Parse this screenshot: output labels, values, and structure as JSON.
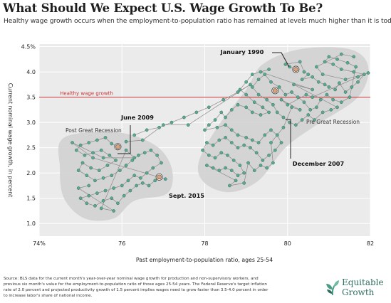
{
  "header": {
    "title": "What Should We Expect U.S. Wage Growth To Be?",
    "subtitle": "Healthy wage growth occurs when the employment-to-population ratio has remained at levels much higher than it is today."
  },
  "chart_data": {
    "type": "scatter",
    "xlabel": "Past employment-to-population ratio, ages 25-54",
    "ylabel": "Current nominal wage growth, in percent",
    "xlim": [
      74,
      82
    ],
    "ylim": [
      0.75,
      4.55
    ],
    "x_ticks": [
      "74%",
      "76",
      "78",
      "80",
      "82"
    ],
    "y_ticks": [
      "1.0",
      "1.5",
      "2.0",
      "2.5",
      "3.0",
      "3.5",
      "4.0",
      "4.5%"
    ],
    "grid": true,
    "reference_line": {
      "y": 3.5,
      "label": "Healthy wage growth"
    },
    "regions": [
      "Post Great Recession",
      "Pre Great Recession"
    ],
    "annotations": [
      {
        "label": "January 1990",
        "x": 80.2,
        "y": 4.05
      },
      {
        "label": "June 2009",
        "x": 75.9,
        "y": 2.52
      },
      {
        "label": "December 2007",
        "x": 79.7,
        "y": 3.63
      },
      {
        "label": "Sept. 2015",
        "x": 76.9,
        "y": 1.92
      }
    ],
    "series": [
      {
        "points": [
          [
            80.2,
            4.05
          ],
          [
            80.05,
            4.1
          ],
          [
            79.95,
            4.15
          ],
          [
            80.3,
            4.2
          ],
          [
            80.4,
            4.0
          ],
          [
            80.5,
            3.95
          ],
          [
            80.35,
            3.85
          ],
          [
            80.6,
            3.9
          ],
          [
            80.75,
            3.8
          ],
          [
            80.9,
            3.75
          ],
          [
            81.0,
            3.7
          ],
          [
            81.15,
            3.65
          ],
          [
            81.25,
            3.78
          ],
          [
            81.4,
            3.6
          ],
          [
            81.55,
            3.7
          ],
          [
            81.7,
            3.8
          ],
          [
            81.85,
            3.95
          ],
          [
            81.6,
            4.0
          ],
          [
            81.3,
            4.05
          ],
          [
            81.1,
            4.15
          ],
          [
            80.9,
            4.2
          ],
          [
            81.0,
            4.3
          ],
          [
            81.2,
            4.25
          ],
          [
            81.45,
            4.18
          ],
          [
            81.65,
            4.1
          ],
          [
            81.5,
            3.5
          ],
          [
            81.3,
            3.4
          ],
          [
            81.1,
            3.45
          ],
          [
            80.95,
            3.55
          ],
          [
            80.8,
            3.45
          ],
          [
            80.7,
            3.3
          ],
          [
            80.55,
            3.25
          ],
          [
            80.4,
            3.4
          ],
          [
            80.25,
            3.5
          ],
          [
            80.1,
            3.6
          ],
          [
            79.95,
            3.55
          ],
          [
            79.8,
            3.7
          ],
          [
            79.6,
            3.8
          ],
          [
            79.45,
            3.95
          ],
          [
            79.3,
            3.85
          ],
          [
            79.15,
            3.7
          ],
          [
            79.3,
            3.55
          ],
          [
            79.5,
            3.45
          ],
          [
            79.65,
            3.35
          ],
          [
            79.75,
            3.2
          ],
          [
            79.9,
            3.1
          ],
          [
            80.05,
            3.0
          ],
          [
            80.2,
            2.95
          ],
          [
            80.35,
            3.05
          ],
          [
            80.5,
            3.15
          ],
          [
            80.65,
            3.05
          ],
          [
            80.85,
            3.2
          ],
          [
            81.05,
            3.25
          ],
          [
            81.2,
            3.3
          ],
          [
            80.15,
            3.75
          ],
          [
            80.6,
            3.65
          ],
          [
            79.35,
            4.0
          ],
          [
            79.55,
            4.05
          ],
          [
            79.15,
            3.95
          ],
          [
            79.0,
            3.8
          ],
          [
            78.85,
            3.65
          ],
          [
            79.0,
            3.55
          ],
          [
            79.2,
            3.4
          ],
          [
            79.4,
            3.3
          ],
          [
            79.55,
            3.2
          ],
          [
            79.35,
            3.15
          ],
          [
            79.15,
            3.2
          ],
          [
            79.0,
            3.3
          ],
          [
            78.8,
            3.35
          ],
          [
            78.65,
            3.25
          ],
          [
            78.5,
            3.1
          ],
          [
            78.4,
            3.2
          ],
          [
            78.25,
            3.05
          ],
          [
            78.1,
            2.95
          ],
          [
            78.0,
            2.85
          ],
          [
            78.3,
            2.9
          ],
          [
            78.5,
            2.95
          ],
          [
            78.65,
            2.85
          ],
          [
            78.8,
            2.75
          ],
          [
            79.0,
            2.7
          ],
          [
            79.15,
            2.65
          ],
          [
            79.3,
            2.6
          ],
          [
            79.45,
            2.75
          ],
          [
            79.6,
            2.85
          ],
          [
            79.75,
            2.75
          ],
          [
            79.85,
            2.6
          ],
          [
            79.7,
            2.45
          ],
          [
            79.55,
            2.35
          ],
          [
            79.4,
            2.25
          ],
          [
            79.25,
            2.4
          ],
          [
            79.1,
            2.5
          ],
          [
            78.95,
            2.55
          ],
          [
            78.8,
            2.5
          ],
          [
            78.65,
            2.6
          ],
          [
            78.5,
            2.7
          ],
          [
            78.35,
            2.65
          ],
          [
            78.2,
            2.55
          ],
          [
            78.05,
            2.6
          ],
          [
            77.95,
            2.45
          ],
          [
            78.1,
            2.35
          ],
          [
            78.25,
            2.3
          ],
          [
            78.4,
            2.4
          ],
          [
            78.55,
            2.35
          ],
          [
            78.7,
            2.25
          ],
          [
            78.85,
            2.15
          ],
          [
            78.95,
            2.0
          ],
          [
            78.8,
            1.95
          ],
          [
            78.65,
            2.05
          ],
          [
            78.5,
            2.1
          ],
          [
            78.35,
            2.05
          ],
          [
            78.2,
            2.1
          ],
          [
            78.05,
            2.15
          ],
          [
            78.75,
            1.85
          ],
          [
            78.6,
            1.75
          ],
          [
            78.95,
            1.8
          ],
          [
            79.05,
            2.2
          ],
          [
            79.2,
            2.05
          ],
          [
            79.35,
            2.15
          ],
          [
            79.5,
            2.1
          ],
          [
            79.65,
            2.2
          ],
          [
            79.6,
            2.6
          ],
          [
            79.9,
            2.9
          ],
          [
            80.1,
            3.3
          ],
          [
            80.3,
            3.25
          ],
          [
            79.85,
            3.45
          ],
          [
            80.0,
            3.35
          ],
          [
            80.45,
            3.55
          ],
          [
            80.6,
            3.5
          ],
          [
            81.7,
            3.9
          ],
          [
            81.95,
            3.98
          ],
          [
            81.4,
            3.85
          ],
          [
            80.85,
            3.95
          ],
          [
            80.7,
            4.1
          ],
          [
            81.3,
            4.35
          ],
          [
            81.6,
            4.3
          ]
        ]
      },
      {
        "points": [
          [
            75.9,
            2.52
          ],
          [
            75.75,
            2.58
          ],
          [
            75.6,
            2.7
          ],
          [
            75.4,
            2.65
          ],
          [
            75.2,
            2.6
          ],
          [
            75.0,
            2.55
          ],
          [
            74.9,
            2.45
          ],
          [
            75.1,
            2.35
          ],
          [
            75.3,
            2.4
          ],
          [
            75.5,
            2.45
          ],
          [
            75.7,
            2.35
          ],
          [
            75.85,
            2.25
          ],
          [
            75.65,
            2.15
          ],
          [
            75.45,
            2.05
          ],
          [
            75.25,
            2.1
          ],
          [
            75.05,
            2.2
          ],
          [
            74.95,
            2.05
          ],
          [
            75.15,
            1.95
          ],
          [
            75.35,
            1.85
          ],
          [
            75.55,
            1.9
          ],
          [
            75.75,
            1.95
          ],
          [
            75.95,
            2.05
          ],
          [
            76.1,
            2.15
          ],
          [
            76.25,
            2.25
          ],
          [
            76.4,
            2.35
          ],
          [
            76.55,
            2.4
          ],
          [
            76.7,
            2.45
          ],
          [
            76.85,
            2.35
          ],
          [
            76.95,
            2.2
          ],
          [
            76.75,
            2.1
          ],
          [
            76.6,
            2.0
          ],
          [
            76.45,
            1.9
          ],
          [
            76.3,
            1.95
          ],
          [
            76.15,
            1.85
          ],
          [
            76.0,
            1.75
          ],
          [
            75.8,
            1.7
          ],
          [
            75.6,
            1.65
          ],
          [
            75.4,
            1.6
          ],
          [
            75.2,
            1.55
          ],
          [
            75.0,
            1.5
          ],
          [
            75.15,
            1.4
          ],
          [
            75.35,
            1.35
          ],
          [
            75.55,
            1.45
          ],
          [
            75.75,
            1.5
          ],
          [
            75.9,
            1.4
          ],
          [
            76.05,
            1.55
          ],
          [
            76.2,
            1.65
          ],
          [
            76.35,
            1.75
          ],
          [
            76.5,
            1.8
          ],
          [
            76.65,
            1.75
          ],
          [
            76.8,
            1.85
          ],
          [
            76.9,
            1.92
          ],
          [
            77.05,
            1.88
          ],
          [
            75.3,
            2.3
          ],
          [
            74.8,
            2.6
          ],
          [
            75.55,
            2.3
          ],
          [
            76.3,
            2.3
          ],
          [
            76.1,
            2.45
          ],
          [
            75.5,
            1.3
          ],
          [
            75.8,
            1.25
          ],
          [
            74.95,
            1.7
          ],
          [
            75.2,
            1.75
          ]
        ]
      },
      {
        "points": [
          [
            76.3,
            2.75
          ],
          [
            76.6,
            2.85
          ],
          [
            76.9,
            2.9
          ],
          [
            77.2,
            3.0
          ],
          [
            77.5,
            3.1
          ],
          [
            77.8,
            3.2
          ],
          [
            78.1,
            3.3
          ],
          [
            78.45,
            3.45
          ],
          [
            78.8,
            3.6
          ],
          [
            79.1,
            3.75
          ],
          [
            77.6,
            2.95
          ],
          [
            77.0,
            2.95
          ],
          [
            76.5,
            2.65
          ],
          [
            76.1,
            2.62
          ]
        ]
      }
    ]
  },
  "source": {
    "lines": [
      "Source: BLS data for the current month's year-over-year nominal wage growth for production and non-supervisory workers, and",
      "previous six month's value for the employment-to-population ratio of those ages 25-54 years. The Federal Reserve's target inflation",
      "rate of 2.0 percent and projected productivity growth of 1.5 percent implies wages need to grow faster than 3.5-4.0 percent in order",
      "to increase labor's share of national income."
    ]
  },
  "brand": {
    "line1": "Equitable",
    "line2": "Growth",
    "accent": "#4a9e86"
  },
  "colors": {
    "plot_background": "#ebebeb",
    "region_fill": "#d2d2d2",
    "point_fill": "#5aa88f",
    "point_stroke": "#2f6d5d",
    "reference_line": "#c83232",
    "highlight_fill": "#d9a27a"
  }
}
